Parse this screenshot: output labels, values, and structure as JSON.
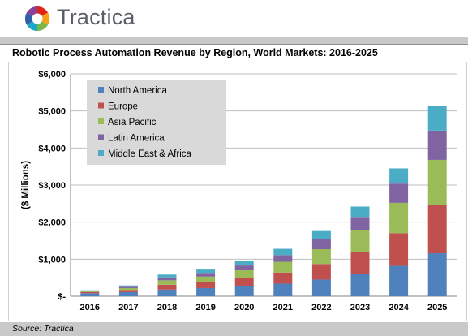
{
  "header": {
    "brand_name": "Tractica"
  },
  "footer": {
    "source": "Source: Tractica"
  },
  "chart_data": {
    "type": "bar",
    "stacked": true,
    "title": "Robotic Process Automation Revenue by Region, World Markets: 2016-2025",
    "ylabel": "($ Millions)",
    "xlabel": "",
    "ylim": [
      0,
      6000
    ],
    "ytick_labels": [
      "$-",
      "$1,000",
      "$2,000",
      "$3,000",
      "$4,000",
      "$5,000",
      "$6,000"
    ],
    "ytick_values": [
      0,
      1000,
      2000,
      3000,
      4000,
      5000,
      6000
    ],
    "grid": true,
    "legend_position": "top-left",
    "categories": [
      "2016",
      "2017",
      "2018",
      "2019",
      "2020",
      "2021",
      "2022",
      "2023",
      "2024",
      "2025"
    ],
    "series": [
      {
        "name": "North America",
        "color": "#4f81bd",
        "values": [
          80,
          110,
          180,
          220,
          280,
          340,
          450,
          600,
          820,
          1160
        ]
      },
      {
        "name": "Europe",
        "color": "#c0504d",
        "values": [
          30,
          60,
          130,
          160,
          220,
          300,
          420,
          590,
          880,
          1300
        ]
      },
      {
        "name": "Asia Pacific",
        "color": "#9bbb59",
        "values": [
          20,
          50,
          120,
          150,
          200,
          290,
          400,
          600,
          820,
          1220
        ]
      },
      {
        "name": "Latin America",
        "color": "#8064a2",
        "values": [
          15,
          35,
          80,
          100,
          130,
          180,
          270,
          350,
          520,
          790
        ]
      },
      {
        "name": "Middle East & Africa",
        "color": "#4bacc6",
        "values": [
          15,
          35,
          75,
          90,
          120,
          170,
          220,
          280,
          410,
          660
        ]
      }
    ]
  }
}
